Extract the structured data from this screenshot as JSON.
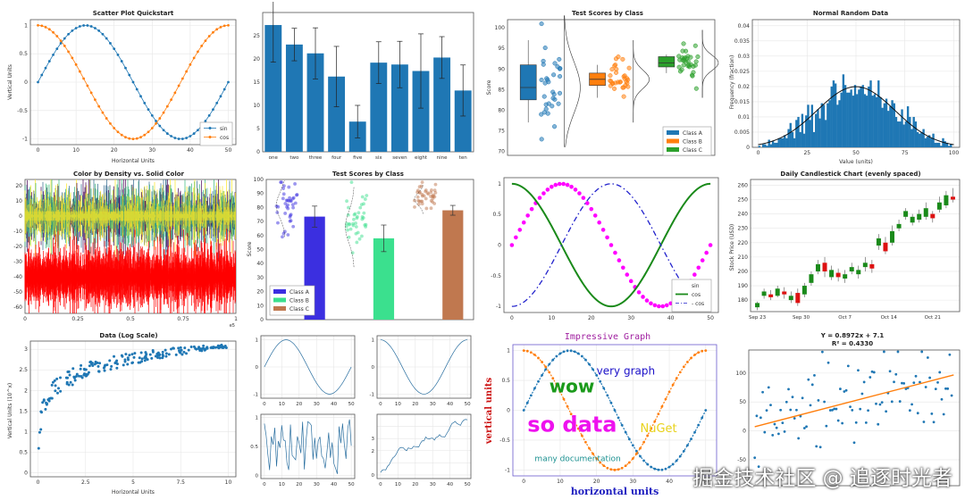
{
  "watermark": "掘金技术社区 @ 追逐时光者",
  "chart_data": [
    {
      "id": "p1",
      "type": "scatter",
      "title": "Scatter Plot Quickstart",
      "xlabel": "Horizontal Units",
      "ylabel": "Vertical Units",
      "xlim": [
        -2,
        52
      ],
      "ylim": [
        -1.1,
        1.1
      ],
      "xticks": [
        0,
        10,
        20,
        30,
        40,
        50
      ],
      "yticks": [
        -1,
        -0.5,
        0,
        0.5,
        1
      ],
      "legend": {
        "placement": "bottom-right",
        "entries": [
          "sin",
          "cos"
        ]
      },
      "grid": true,
      "series": [
        {
          "name": "sin",
          "function": "sin",
          "period": 50,
          "amplitude": 1,
          "points": 51,
          "color": "#1f77b4"
        },
        {
          "name": "cos",
          "function": "cos",
          "period": 50,
          "amplitude": 1,
          "points": 51,
          "color": "#ff7f0e"
        }
      ]
    },
    {
      "id": "p2",
      "type": "bar",
      "categories": [
        "one",
        "two",
        "three",
        "four",
        "five",
        "six",
        "seven",
        "eight",
        "nine",
        "ten"
      ],
      "values": [
        27.3,
        23.1,
        21.2,
        16.2,
        6.5,
        19.2,
        18.8,
        17.4,
        20.3,
        13.2
      ],
      "errors": [
        8,
        3.5,
        5.5,
        6.5,
        3.5,
        4.5,
        5,
        8,
        4.5,
        5.5
      ],
      "ylim": [
        0,
        30
      ],
      "yticks": [
        0,
        5,
        10,
        15,
        20,
        25
      ],
      "color": "#1f77b4"
    },
    {
      "id": "p3",
      "type": "box",
      "title": "Test Scores by Class",
      "ylabel": "Score",
      "ylim": [
        69,
        102
      ],
      "yticks": [
        70,
        75,
        80,
        85,
        90,
        95,
        100
      ],
      "legend": {
        "placement": "bottom-right",
        "entries": [
          "Class A",
          "Class B",
          "Class C"
        ]
      },
      "boxes": [
        {
          "name": "Class A",
          "q1": 82.5,
          "median": 85.5,
          "q3": 91,
          "wmin": 77,
          "wmax": 97,
          "color": "#1f77b4"
        },
        {
          "name": "Class B",
          "q1": 86,
          "median": 87.5,
          "q3": 89,
          "wmin": 83,
          "wmax": 91,
          "color": "#ff7f0e"
        },
        {
          "name": "Class C",
          "q1": 90.5,
          "median": 91.5,
          "q3": 93,
          "wmin": 89,
          "wmax": 93.5,
          "color": "#2ca02c"
        }
      ]
    },
    {
      "id": "p4",
      "type": "bar",
      "title": "Normal Random Data",
      "xlabel": "Value (units)",
      "ylabel": "Frequency (fraction)",
      "xlim": [
        -3,
        103
      ],
      "ylim": [
        0,
        0.042
      ],
      "xticks": [
        0,
        25,
        50,
        75,
        100
      ],
      "yticks": [
        0,
        0.005,
        0.01,
        0.015,
        0.02,
        0.025,
        0.03,
        0.035,
        0.04
      ],
      "mean": 50,
      "std": 20,
      "bins": 100,
      "color": "#1f77b4"
    },
    {
      "id": "p5",
      "type": "scatter",
      "title": "Color by Density vs. Solid Color",
      "xlim": [
        0,
        1
      ],
      "ylim": [
        -64,
        24
      ],
      "xticks": [
        0,
        0.25,
        0.5,
        0.75,
        1
      ],
      "xticklabels": [
        "0",
        "0.25",
        "0.5",
        "0.75",
        "1"
      ],
      "xexponent": "e5",
      "yticks": [
        -60,
        -50,
        -40,
        -30,
        -20,
        -10,
        0,
        10,
        20
      ],
      "series": [
        {
          "name": "density",
          "center": 0,
          "spread": 12,
          "colors": [
            "#440154",
            "#31688e",
            "#35b779",
            "#fde725"
          ]
        },
        {
          "name": "solid",
          "center": -40,
          "spread": 12,
          "color": "#ff0000"
        }
      ]
    },
    {
      "id": "p6",
      "type": "bar",
      "title": "Test Scores by Class",
      "ylabel": "Score",
      "ylim": [
        0,
        100
      ],
      "yticks": [
        0,
        10,
        20,
        30,
        40,
        50,
        60,
        70,
        80,
        90,
        100
      ],
      "legend": {
        "placement": "bottom-left",
        "entries": [
          "Class A",
          "Class B",
          "Class C"
        ]
      },
      "bars": [
        {
          "name": "Class A",
          "value": 73.5,
          "error": 7.5,
          "color": "#3b2fe0"
        },
        {
          "name": "Class B",
          "value": 58,
          "error": 9.5,
          "color": "#3be08e"
        },
        {
          "name": "Class C",
          "value": 78,
          "error": 3.5,
          "color": "#c0784f"
        }
      ]
    },
    {
      "id": "p7",
      "type": "line",
      "xlim": [
        -2,
        52
      ],
      "ylim": [
        -1.1,
        1.1
      ],
      "xticks": [
        0,
        10,
        20,
        30,
        40,
        50
      ],
      "yticks": [
        -1,
        -0.5,
        0,
        0.5,
        1
      ],
      "legend": {
        "placement": "bottom-right",
        "entries": [
          "sin",
          "cos",
          "- cos"
        ]
      },
      "series": [
        {
          "name": "sin",
          "function": "sin",
          "style": "markers",
          "color": "#ff00ff"
        },
        {
          "name": "cos",
          "function": "cos",
          "style": "solid",
          "color": "#1a8a1a"
        },
        {
          "name": "- cos",
          "function": "-cos",
          "style": "dashdot",
          "color": "#2222cc"
        }
      ]
    },
    {
      "id": "p8",
      "type": "bar",
      "title": "Daily Candlestick Chart (evenly spaced)",
      "ylabel": "Stock Price (USD)",
      "ylim": [
        172,
        264
      ],
      "yticks": [
        170,
        180,
        190,
        200,
        210,
        220,
        230,
        240,
        250,
        260
      ],
      "xticklabels": [
        "Sep 23",
        "Sep 30",
        "Oct 7",
        "Oct 14",
        "Oct 21"
      ],
      "candles": [
        [
          175,
          178,
          173,
          179
        ],
        [
          183,
          186,
          181,
          188
        ],
        [
          184,
          182,
          180,
          187
        ],
        [
          183,
          188,
          182,
          190
        ],
        [
          186,
          184,
          181,
          189
        ],
        [
          180,
          183,
          178,
          186
        ],
        [
          185,
          178,
          176,
          188
        ],
        [
          184,
          190,
          182,
          192
        ],
        [
          192,
          198,
          190,
          200
        ],
        [
          200,
          205,
          198,
          208
        ],
        [
          206,
          200,
          196,
          210
        ],
        [
          196,
          201,
          194,
          204
        ],
        [
          199,
          196,
          193,
          202
        ],
        [
          195,
          198,
          192,
          201
        ],
        [
          200,
          203,
          198,
          206
        ],
        [
          198,
          201,
          195,
          204
        ],
        [
          203,
          206,
          200,
          210
        ],
        [
          205,
          202,
          199,
          208
        ],
        [
          218,
          223,
          215,
          226
        ],
        [
          220,
          214,
          212,
          224
        ],
        [
          220,
          228,
          218,
          232
        ],
        [
          230,
          233,
          228,
          236
        ],
        [
          238,
          242,
          236,
          244
        ],
        [
          234,
          238,
          232,
          240
        ],
        [
          236,
          240,
          234,
          243
        ],
        [
          238,
          244,
          236,
          248
        ],
        [
          240,
          237,
          234,
          242
        ],
        [
          243,
          248,
          241,
          252
        ],
        [
          246,
          253,
          244,
          256
        ],
        [
          252,
          250,
          248,
          258
        ]
      ]
    },
    {
      "id": "p9",
      "type": "scatter",
      "title": "Data (Log Scale)",
      "xlabel": "Horizontal Units",
      "ylabel": "Vertical Units (10^x)",
      "xlim": [
        -0.4,
        10.4
      ],
      "ylim": [
        -0.1,
        3.2
      ],
      "xticks": [
        0,
        2.5,
        5,
        7.5,
        10
      ],
      "yticks": [
        0,
        0.5,
        1,
        1.5,
        2,
        2.5,
        3
      ],
      "points": 200,
      "color": "#1f77b4"
    },
    {
      "id": "p10",
      "type": "line",
      "subplots": [
        {
          "function": "sin",
          "xlim": [
            -2,
            52
          ],
          "ylim": [
            -1.15,
            1.15
          ],
          "xticks": [
            0,
            10,
            20,
            30,
            40,
            50
          ],
          "yticks": [
            -1,
            0,
            1
          ]
        },
        {
          "function": "cos",
          "xlim": [
            -2,
            52
          ],
          "ylim": [
            -1.15,
            1.15
          ],
          "xticks": [
            0,
            10,
            20,
            30,
            40,
            50
          ],
          "yticks": [
            -1,
            0,
            1
          ]
        },
        {
          "function": "random",
          "xlim": [
            -2,
            52
          ],
          "ylim": [
            -0.05,
            1.05
          ],
          "xticks": [
            0,
            10,
            20,
            30,
            40,
            50
          ],
          "yticks": [
            0,
            0.5,
            1
          ],
          "yticklabels": [
            "0",
            "0.5",
            "1"
          ]
        },
        {
          "function": "randomwalk",
          "xlim": [
            -2,
            52
          ],
          "ylim": [
            -0.3,
            5
          ],
          "xticks": [
            0,
            10,
            20,
            30,
            40,
            50
          ],
          "yticks": [
            0,
            1,
            2,
            3,
            4
          ],
          "yticklabels": [
            "0",
            "",
            "2",
            "3",
            ""
          ]
        }
      ]
    },
    {
      "id": "p11",
      "type": "scatter",
      "title": "Impressive Graph",
      "xlabel": "horizontal units",
      "ylabel": "vertical units",
      "xlim": [
        -3,
        53
      ],
      "ylim": [
        -1.1,
        1.1
      ],
      "xticks": [
        0,
        10,
        20,
        30,
        40,
        50
      ],
      "yticks": [
        -1,
        -0.5,
        0,
        0.5,
        1
      ],
      "annotations": [
        {
          "text": "wow",
          "x": 7,
          "y": 0.3,
          "color": "#1a9a1a"
        },
        {
          "text": "very graph",
          "x": 20,
          "y": 0.6,
          "color": "#1b10c8"
        },
        {
          "text": "so data",
          "x": 1,
          "y": -0.36,
          "color": "#ee11ee"
        },
        {
          "text": "NuGet",
          "x": 32,
          "y": -0.37,
          "color": "#e8d21a"
        },
        {
          "text": "many documentation",
          "x": 3,
          "y": -0.85,
          "color": "#1a9090"
        }
      ]
    },
    {
      "id": "p12",
      "type": "scatter",
      "title": "Y = 0.8972x + 7.1",
      "subtitle": "R² = 0.4330",
      "xlim": [
        -3,
        103
      ],
      "ylim": [
        -95,
        140
      ],
      "yticks": [
        -50,
        0,
        50,
        100
      ],
      "slope": 0.8972,
      "intercept": 7.1,
      "points": 100,
      "color": "#1f77b4",
      "fitcolor": "#ff7f0e"
    }
  ]
}
